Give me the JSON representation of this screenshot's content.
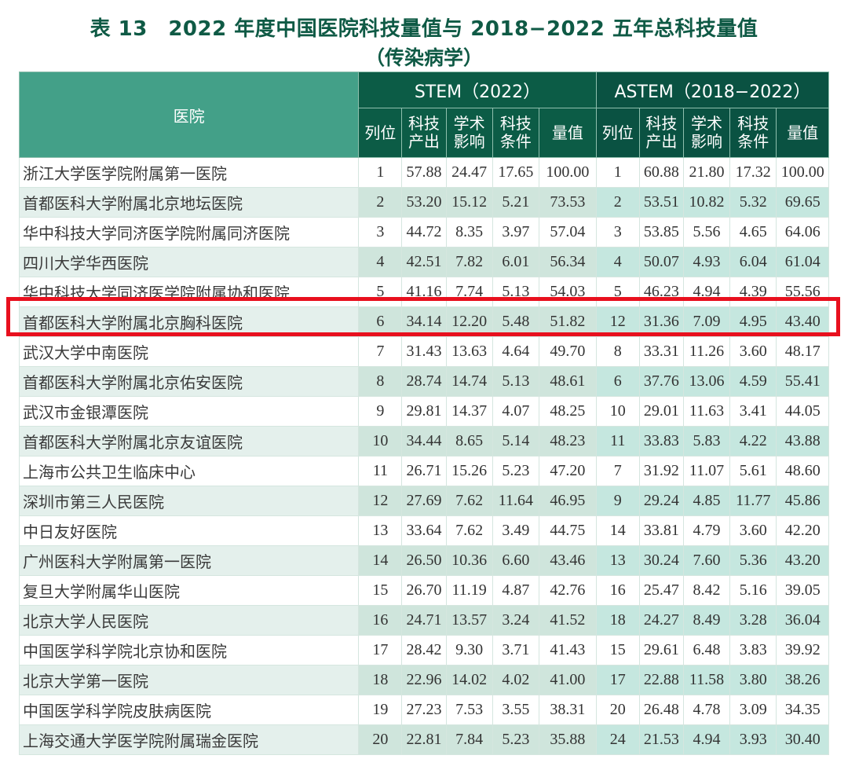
{
  "title": {
    "line1": "表 13　2022 年度中国医院科技量值与 2018−2022 五年总科技量值",
    "line2": "（传染病学）"
  },
  "header": {
    "hospital": "医院",
    "stem_group": "STEM（2022）",
    "astem_group": "ASTEM（2018−2022）",
    "columns": [
      "列位",
      "科技\n产出",
      "学术\n影响",
      "科技\n条件",
      "量值"
    ]
  },
  "colors": {
    "title": "#0f5a45",
    "header_dark": "#0c5c46",
    "header_light": "#43a088",
    "row_tint": "#cfe5dc",
    "highlight_border": "#e8101e"
  },
  "highlighted_row_index": 5,
  "rows": [
    {
      "name": "浙江大学医学院附属第一医院",
      "stem": [
        "1",
        "57.88",
        "24.47",
        "17.65",
        "100.00"
      ],
      "astem": [
        "1",
        "60.88",
        "21.80",
        "17.32",
        "100.00"
      ]
    },
    {
      "name": "首都医科大学附属北京地坛医院",
      "stem": [
        "2",
        "53.20",
        "15.12",
        "5.21",
        "73.53"
      ],
      "astem": [
        "2",
        "53.51",
        "10.82",
        "5.32",
        "69.65"
      ]
    },
    {
      "name": "华中科技大学同济医学院附属同济医院",
      "stem": [
        "3",
        "44.72",
        "8.35",
        "3.97",
        "57.04"
      ],
      "astem": [
        "3",
        "53.85",
        "5.56",
        "4.65",
        "64.06"
      ]
    },
    {
      "name": "四川大学华西医院",
      "stem": [
        "4",
        "42.51",
        "7.82",
        "6.01",
        "56.34"
      ],
      "astem": [
        "4",
        "50.07",
        "4.93",
        "6.04",
        "61.04"
      ]
    },
    {
      "name": "华中科技大学同济医学院附属协和医院",
      "stem": [
        "5",
        "41.16",
        "7.74",
        "5.13",
        "54.03"
      ],
      "astem": [
        "5",
        "46.23",
        "4.94",
        "4.39",
        "55.56"
      ]
    },
    {
      "name": "首都医科大学附属北京胸科医院",
      "stem": [
        "6",
        "34.14",
        "12.20",
        "5.48",
        "51.82"
      ],
      "astem": [
        "12",
        "31.36",
        "7.09",
        "4.95",
        "43.40"
      ]
    },
    {
      "name": "武汉大学中南医院",
      "stem": [
        "7",
        "31.43",
        "13.63",
        "4.64",
        "49.70"
      ],
      "astem": [
        "8",
        "33.31",
        "11.26",
        "3.60",
        "48.17"
      ]
    },
    {
      "name": "首都医科大学附属北京佑安医院",
      "stem": [
        "8",
        "28.74",
        "14.74",
        "5.13",
        "48.61"
      ],
      "astem": [
        "6",
        "37.76",
        "13.06",
        "4.59",
        "55.41"
      ]
    },
    {
      "name": "武汉市金银潭医院",
      "stem": [
        "9",
        "29.81",
        "14.37",
        "4.07",
        "48.25"
      ],
      "astem": [
        "10",
        "29.01",
        "11.63",
        "3.41",
        "44.05"
      ]
    },
    {
      "name": "首都医科大学附属北京友谊医院",
      "stem": [
        "10",
        "34.44",
        "8.65",
        "5.14",
        "48.23"
      ],
      "astem": [
        "11",
        "33.83",
        "5.83",
        "4.22",
        "43.88"
      ]
    },
    {
      "name": "上海市公共卫生临床中心",
      "stem": [
        "11",
        "26.71",
        "15.26",
        "5.23",
        "47.20"
      ],
      "astem": [
        "7",
        "31.92",
        "11.07",
        "5.61",
        "48.60"
      ]
    },
    {
      "name": "深圳市第三人民医院",
      "stem": [
        "12",
        "27.69",
        "7.62",
        "11.64",
        "46.95"
      ],
      "astem": [
        "9",
        "29.24",
        "4.85",
        "11.77",
        "45.86"
      ]
    },
    {
      "name": "中日友好医院",
      "stem": [
        "13",
        "33.64",
        "7.62",
        "3.49",
        "44.75"
      ],
      "astem": [
        "14",
        "33.81",
        "4.79",
        "3.60",
        "42.20"
      ]
    },
    {
      "name": "广州医科大学附属第一医院",
      "stem": [
        "14",
        "26.50",
        "10.36",
        "6.60",
        "43.46"
      ],
      "astem": [
        "13",
        "30.24",
        "7.60",
        "5.36",
        "43.20"
      ]
    },
    {
      "name": "复旦大学附属华山医院",
      "stem": [
        "15",
        "26.70",
        "11.19",
        "4.87",
        "42.76"
      ],
      "astem": [
        "16",
        "25.47",
        "8.42",
        "5.16",
        "39.05"
      ]
    },
    {
      "name": "北京大学人民医院",
      "stem": [
        "16",
        "24.71",
        "13.57",
        "3.24",
        "41.52"
      ],
      "astem": [
        "18",
        "24.27",
        "8.49",
        "3.28",
        "36.04"
      ]
    },
    {
      "name": "中国医学科学院北京协和医院",
      "stem": [
        "17",
        "28.42",
        "9.30",
        "3.71",
        "41.43"
      ],
      "astem": [
        "15",
        "29.61",
        "6.48",
        "3.83",
        "39.92"
      ]
    },
    {
      "name": "北京大学第一医院",
      "stem": [
        "18",
        "22.96",
        "14.02",
        "4.02",
        "41.00"
      ],
      "astem": [
        "17",
        "22.88",
        "11.58",
        "3.80",
        "38.26"
      ]
    },
    {
      "name": "中国医学科学院皮肤病医院",
      "stem": [
        "19",
        "27.23",
        "7.53",
        "3.55",
        "38.31"
      ],
      "astem": [
        "20",
        "26.48",
        "4.78",
        "3.09",
        "34.35"
      ]
    },
    {
      "name": "上海交通大学医学院附属瑞金医院",
      "stem": [
        "20",
        "22.81",
        "7.84",
        "5.23",
        "35.88"
      ],
      "astem": [
        "24",
        "21.53",
        "4.94",
        "3.93",
        "30.40"
      ]
    }
  ]
}
